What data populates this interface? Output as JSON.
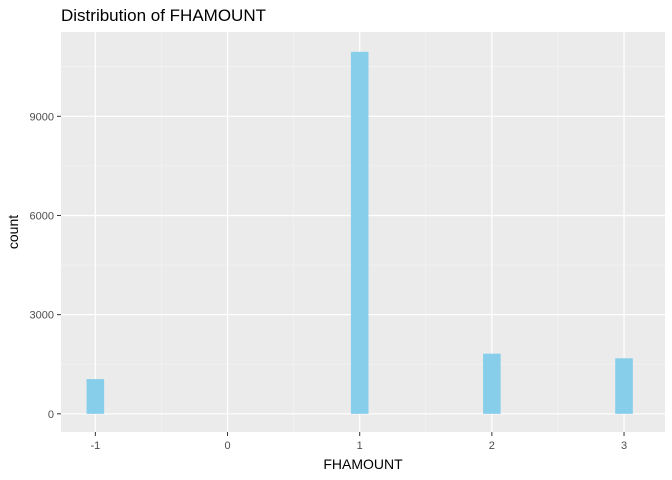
{
  "chart_data": {
    "type": "bar",
    "title": "Distribution of FHAMOUNT",
    "xlabel": "FHAMOUNT",
    "ylabel": "count",
    "x_ticks": [
      "-1",
      "0",
      "1",
      "2",
      "3"
    ],
    "y_ticks": [
      "0",
      "3000",
      "6000",
      "9000"
    ],
    "xlim": [
      -1.26,
      3.31
    ],
    "ylim": [
      -550,
      11550
    ],
    "bar_width": 0.133,
    "bars": [
      {
        "x": -1,
        "value": 1050
      },
      {
        "x": 1,
        "value": 10950
      },
      {
        "x": 2,
        "value": 1820
      },
      {
        "x": 3,
        "value": 1680
      }
    ],
    "grid": true,
    "colors": {
      "bar_fill": "#87CEEB",
      "panel_background": "#EBEBEB",
      "grid_major": "#FFFFFF",
      "grid_minor": "#F5F5F5"
    }
  }
}
